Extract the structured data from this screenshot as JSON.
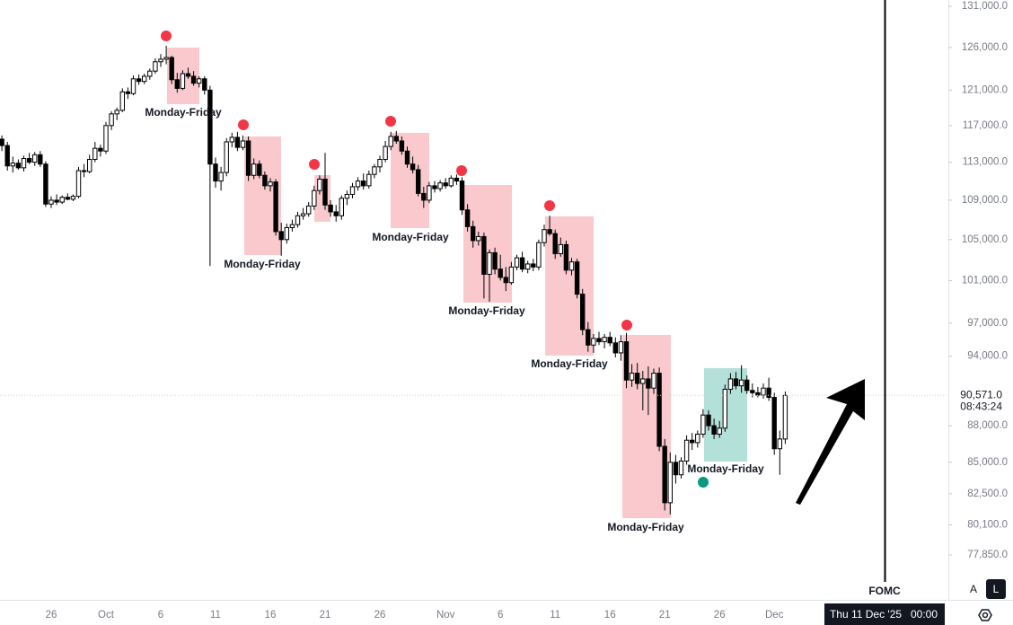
{
  "chart_data": {
    "type": "candlestick",
    "log_scale": true,
    "grid": false,
    "up_color": "#ffffff",
    "down_color": "#000000",
    "ylim": [
      74600,
      131800
    ],
    "yticks": [
      {
        "value": 131000,
        "label": "131,000.0"
      },
      {
        "value": 126000,
        "label": "126,000.0"
      },
      {
        "value": 121000,
        "label": "121,000.0"
      },
      {
        "value": 117000,
        "label": "117,000.0"
      },
      {
        "value": 113000,
        "label": "113,000.0"
      },
      {
        "value": 109000,
        "label": "109,000.0"
      },
      {
        "value": 105000,
        "label": "105,000.0"
      },
      {
        "value": 101000,
        "label": "101,000.0"
      },
      {
        "value": 97000,
        "label": "97,000.0"
      },
      {
        "value": 94000,
        "label": "94,000.0"
      },
      {
        "value": 88000,
        "label": "88,000.0"
      },
      {
        "value": 85000,
        "label": "85,000.0"
      },
      {
        "value": 82500,
        "label": "82,500.0"
      },
      {
        "value": 80100,
        "label": "80,100.0"
      },
      {
        "value": 77850,
        "label": "77,850.0"
      }
    ],
    "categories": [
      null,
      null,
      null,
      null,
      null,
      null,
      null,
      null,
      null,
      null,
      "26",
      null,
      null,
      null,
      null,
      null,
      null,
      null,
      null,
      null,
      "Oct",
      null,
      null,
      null,
      null,
      null,
      null,
      null,
      null,
      null,
      "6",
      null,
      null,
      null,
      null,
      null,
      null,
      null,
      null,
      null,
      "11",
      null,
      null,
      null,
      null,
      null,
      null,
      null,
      null,
      null,
      "16",
      null,
      null,
      null,
      null,
      null,
      null,
      null,
      null,
      null,
      "21",
      null,
      null,
      null,
      null,
      null,
      null,
      null,
      null,
      null,
      "26",
      null,
      null,
      null,
      null,
      null,
      null,
      null,
      null,
      null,
      null,
      null,
      "Nov",
      null,
      null,
      null,
      null,
      null,
      null,
      null,
      null,
      null,
      "6",
      null,
      null,
      null,
      null,
      null,
      null,
      null,
      null,
      null,
      "11",
      null,
      null,
      null,
      null,
      null,
      null,
      null,
      null,
      null,
      "16",
      null,
      null,
      null,
      null,
      null,
      null,
      null,
      null,
      null,
      "21",
      null,
      null,
      null,
      null,
      null,
      null,
      null,
      null,
      null,
      "26",
      null,
      null,
      null,
      null,
      null,
      null,
      null,
      null,
      null,
      "Dec",
      null,
      null
    ],
    "ohlc": [
      [
        115000,
        116000,
        114500,
        115500
      ],
      [
        115500,
        115900,
        114200,
        114800
      ],
      [
        114800,
        115200,
        112100,
        112600
      ],
      [
        112600,
        113600,
        111900,
        112900
      ],
      [
        112900,
        113300,
        112200,
        112400
      ],
      [
        112400,
        113700,
        112000,
        113400
      ],
      [
        113400,
        114000,
        112800,
        113000
      ],
      [
        113000,
        114100,
        112600,
        113800
      ],
      [
        113800,
        114200,
        112500,
        112800
      ],
      [
        112800,
        113100,
        108300,
        108600
      ],
      [
        108600,
        109400,
        108200,
        109000
      ],
      [
        109000,
        109600,
        108500,
        108800
      ],
      [
        108800,
        109500,
        108600,
        109300
      ],
      [
        109300,
        109700,
        109000,
        109100
      ],
      [
        109100,
        109600,
        108900,
        109400
      ],
      [
        109400,
        112500,
        109200,
        112100
      ],
      [
        112100,
        112800,
        111400,
        112000
      ],
      [
        112000,
        113800,
        111800,
        113300
      ],
      [
        113300,
        115200,
        113000,
        114500
      ],
      [
        114500,
        114900,
        113600,
        114200
      ],
      [
        114200,
        117400,
        113900,
        117000
      ],
      [
        117000,
        118600,
        116500,
        118300
      ],
      [
        118300,
        119000,
        117600,
        118700
      ],
      [
        118700,
        121200,
        118500,
        120800
      ],
      [
        120800,
        121300,
        120000,
        120600
      ],
      [
        120600,
        122700,
        120400,
        122300
      ],
      [
        122300,
        122800,
        121600,
        122000
      ],
      [
        122000,
        122900,
        121700,
        122600
      ],
      [
        122600,
        123500,
        122200,
        123200
      ],
      [
        123200,
        124700,
        122900,
        124300
      ],
      [
        124300,
        125200,
        123700,
        124600
      ],
      [
        124600,
        126200,
        124000,
        124800
      ],
      [
        124800,
        125000,
        121700,
        122200
      ],
      [
        122200,
        123000,
        120700,
        121200
      ],
      [
        121200,
        123300,
        121000,
        122900
      ],
      [
        122900,
        123600,
        122300,
        122600
      ],
      [
        122600,
        123200,
        121500,
        121800
      ],
      [
        121800,
        122600,
        121300,
        122300
      ],
      [
        122300,
        122600,
        120500,
        121000
      ],
      [
        121000,
        121500,
        102400,
        112800
      ],
      [
        112800,
        113500,
        110300,
        111000
      ],
      [
        111000,
        112500,
        110000,
        111900
      ],
      [
        111900,
        115600,
        111500,
        115200
      ],
      [
        115200,
        116200,
        114600,
        115700
      ],
      [
        115700,
        116300,
        114200,
        114600
      ],
      [
        114600,
        115900,
        114300,
        115300
      ],
      [
        115300,
        115800,
        111000,
        111600
      ],
      [
        111600,
        113400,
        111200,
        112800
      ],
      [
        112800,
        113200,
        111300,
        111600
      ],
      [
        111600,
        112000,
        110100,
        110500
      ],
      [
        110500,
        111300,
        109900,
        110900
      ],
      [
        110900,
        111200,
        105400,
        105800
      ],
      [
        105800,
        106700,
        103400,
        105000
      ],
      [
        105000,
        106600,
        104600,
        106200
      ],
      [
        106200,
        107000,
        105800,
        106500
      ],
      [
        106500,
        107800,
        106200,
        107400
      ],
      [
        107400,
        108200,
        107000,
        107600
      ],
      [
        107600,
        108800,
        107300,
        108400
      ],
      [
        108400,
        110500,
        108000,
        110000
      ],
      [
        110000,
        111600,
        109600,
        111200
      ],
      [
        111200,
        114000,
        108000,
        108500
      ],
      [
        108500,
        109000,
        107300,
        107800
      ],
      [
        107800,
        108500,
        106800,
        107400
      ],
      [
        107400,
        109500,
        107000,
        109200
      ],
      [
        109200,
        110000,
        108500,
        109600
      ],
      [
        109600,
        110800,
        109200,
        110400
      ],
      [
        110400,
        111400,
        110000,
        111000
      ],
      [
        111000,
        111800,
        110100,
        110500
      ],
      [
        110500,
        112100,
        110200,
        111700
      ],
      [
        111700,
        112800,
        111300,
        112500
      ],
      [
        112500,
        113700,
        111900,
        113300
      ],
      [
        113300,
        115300,
        113000,
        114700
      ],
      [
        114700,
        116300,
        114300,
        115800
      ],
      [
        115800,
        116400,
        115000,
        115300
      ],
      [
        115300,
        115800,
        113800,
        114200
      ],
      [
        114200,
        114700,
        112400,
        112800
      ],
      [
        112800,
        113600,
        111800,
        112200
      ],
      [
        112200,
        112700,
        109400,
        109700
      ],
      [
        109700,
        110400,
        108200,
        109000
      ],
      [
        109000,
        110900,
        108700,
        110500
      ],
      [
        110500,
        111000,
        109800,
        110200
      ],
      [
        110200,
        111100,
        109900,
        110800
      ],
      [
        110800,
        111300,
        110200,
        110500
      ],
      [
        110500,
        111600,
        110300,
        111300
      ],
      [
        111300,
        111700,
        110600,
        111000
      ],
      [
        111000,
        111400,
        107500,
        108000
      ],
      [
        108000,
        108600,
        105800,
        106300
      ],
      [
        106300,
        106900,
        104200,
        104900
      ],
      [
        104900,
        105800,
        104400,
        105300
      ],
      [
        105300,
        105700,
        99300,
        101600
      ],
      [
        101600,
        104000,
        99000,
        103700
      ],
      [
        103700,
        104200,
        101600,
        102100
      ],
      [
        102100,
        103500,
        101000,
        101300
      ],
      [
        101300,
        102300,
        100000,
        100800
      ],
      [
        100800,
        102800,
        100600,
        102300
      ],
      [
        102300,
        103500,
        102000,
        103200
      ],
      [
        103200,
        103800,
        101800,
        102100
      ],
      [
        102100,
        102900,
        101700,
        102600
      ],
      [
        102600,
        103100,
        101900,
        102300
      ],
      [
        102300,
        105000,
        102000,
        104700
      ],
      [
        104700,
        106500,
        104300,
        106000
      ],
      [
        106000,
        107400,
        105400,
        105600
      ],
      [
        105600,
        106000,
        103100,
        103600
      ],
      [
        103600,
        105200,
        103300,
        104500
      ],
      [
        104500,
        104900,
        101600,
        102000
      ],
      [
        102000,
        103200,
        101500,
        102800
      ],
      [
        102800,
        103100,
        99300,
        99700
      ],
      [
        99700,
        100200,
        95900,
        96400
      ],
      [
        96400,
        97100,
        94400,
        95000
      ],
      [
        95000,
        96000,
        94300,
        95600
      ],
      [
        95600,
        96200,
        95000,
        95300
      ],
      [
        95300,
        96000,
        94700,
        95700
      ],
      [
        95700,
        96200,
        94900,
        95200
      ],
      [
        95200,
        95700,
        93900,
        94300
      ],
      [
        94300,
        95900,
        93600,
        95300
      ],
      [
        95300,
        96100,
        91200,
        91900
      ],
      [
        91900,
        93300,
        91300,
        92500
      ],
      [
        92500,
        93400,
        91100,
        91600
      ],
      [
        91600,
        92700,
        89300,
        92000
      ],
      [
        92000,
        93100,
        88900,
        91200
      ],
      [
        91200,
        92900,
        90700,
        92500
      ],
      [
        92500,
        93000,
        85900,
        86300
      ],
      [
        86300,
        86900,
        81200,
        81800
      ],
      [
        81800,
        85800,
        80900,
        85000
      ],
      [
        85000,
        85600,
        83300,
        84000
      ],
      [
        84000,
        85400,
        83700,
        85100
      ],
      [
        85100,
        87200,
        84800,
        86800
      ],
      [
        86800,
        87400,
        86000,
        86600
      ],
      [
        86600,
        87600,
        86200,
        87300
      ],
      [
        87300,
        89400,
        87000,
        88900
      ],
      [
        88900,
        89300,
        87600,
        88000
      ],
      [
        88000,
        88600,
        86900,
        87300
      ],
      [
        87300,
        88400,
        87000,
        87800
      ],
      [
        87800,
        91500,
        87500,
        91100
      ],
      [
        91100,
        92500,
        90700,
        92000
      ],
      [
        92000,
        92600,
        91100,
        91400
      ],
      [
        91400,
        93200,
        90800,
        91900
      ],
      [
        91900,
        92300,
        90700,
        91000
      ],
      [
        91000,
        91600,
        90400,
        90800
      ],
      [
        90800,
        91300,
        90400,
        90600
      ],
      [
        90600,
        91600,
        90300,
        91200
      ],
      [
        91200,
        92100,
        90100,
        90400
      ],
      [
        90400,
        90800,
        85600,
        86100
      ],
      [
        86100,
        87600,
        84000,
        86900
      ],
      [
        86900,
        90900,
        86500,
        90571
      ]
    ],
    "last_price_label": "90,571.0",
    "countdown": "08:43:24",
    "annotations": [
      "Monday-Friday",
      "Monday-Friday",
      "Monday-Friday",
      "Monday-Friday",
      "Monday-Friday",
      "Monday-Friday",
      "Monday-Friday"
    ],
    "event_label": "FOMC",
    "cursor_date": "Thu 11 Dec '25",
    "cursor_time": "00:00",
    "scale_buttons": [
      "A",
      "L"
    ]
  }
}
